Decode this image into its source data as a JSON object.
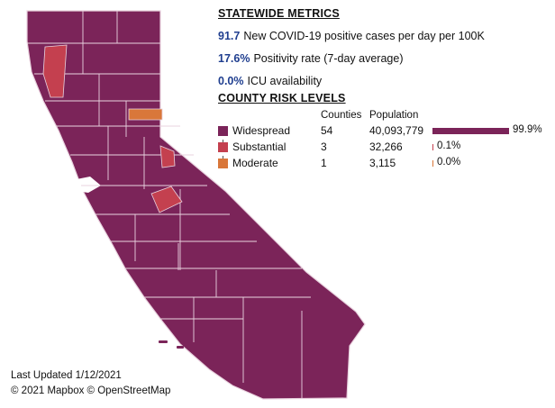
{
  "metrics": {
    "title": "STATEWIDE METRICS",
    "items": [
      {
        "value": "91.7",
        "label": "New COVID-19 positive cases per day per 100K"
      },
      {
        "value": "17.6%",
        "label": "Positivity rate (7-day average)"
      },
      {
        "value": "0.0%",
        "label": "ICU availability"
      }
    ]
  },
  "risk": {
    "title": "COUNTY RISK LEVELS",
    "headers": {
      "counties": "Counties",
      "population": "Population"
    },
    "levels": [
      {
        "name": "Widespread",
        "counties": "54",
        "population": "40,093,779",
        "share": 0.999,
        "share_label": "99.9%",
        "color": "#7b2459"
      },
      {
        "name": "Substantial",
        "counties": "3",
        "population": "32,266",
        "share": 0.001,
        "share_label": "0.1%",
        "color": "#c4404f"
      },
      {
        "name": "Moderate",
        "counties": "1",
        "population": "3,115",
        "share": 0.0,
        "share_label": "0.0%",
        "color": "#d9773a"
      }
    ]
  },
  "footer": {
    "updated": "Last Updated 1/12/2021",
    "credits": "© 2021 Mapbox © OpenStreetMap"
  },
  "map": {
    "region": "California",
    "fill_color": "#7b2459",
    "border_color": "#e9d3df",
    "highlighted_counties": [
      {
        "tier": "Substantial",
        "color": "#c4404f"
      },
      {
        "tier": "Substantial",
        "color": "#c4404f"
      },
      {
        "tier": "Substantial",
        "color": "#c4404f"
      },
      {
        "tier": "Moderate",
        "color": "#d9773a"
      }
    ]
  }
}
